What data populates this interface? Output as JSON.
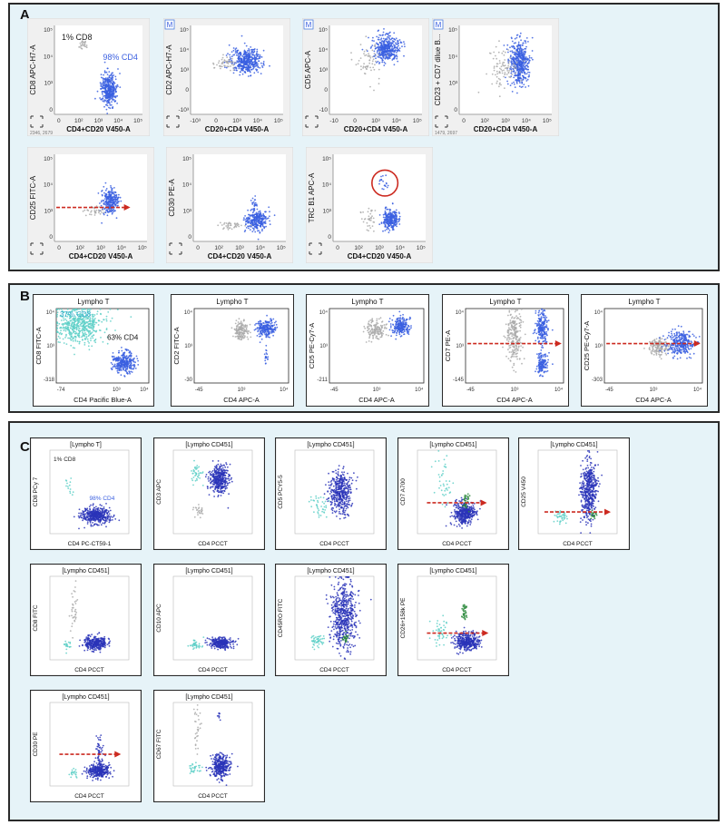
{
  "panels": {
    "a": "A",
    "b": "B",
    "c": "C"
  },
  "colors": {
    "blue": "#3a5fe0",
    "blue_dark": "#2a34b8",
    "gray": "#aaaaaa",
    "cyan": "#5fd0c8",
    "green": "#2e8b3e",
    "red": "#cc2a20",
    "panel_bg": "#e6f3f8"
  },
  "chart_data": [
    {
      "panel": "A",
      "type": "scatter",
      "xlabel": "CD4+CD20 V450-A",
      "ylabel": "CD8 APC-H7-A",
      "xticks": [
        "0",
        "10²",
        "10³",
        "10⁴",
        "10⁵"
      ],
      "yticks": [
        "0",
        "10³",
        "10⁴",
        "10⁵"
      ],
      "annotations": [
        "1% CD8",
        "98% CD4"
      ],
      "footer": "2346, 2679",
      "marker": "",
      "clusters": [
        {
          "c": "blue",
          "x": 0.62,
          "y": 0.72,
          "sx": 0.045,
          "sy": 0.09,
          "n": 380
        },
        {
          "c": "gray",
          "x": 0.32,
          "y": 0.2,
          "sx": 0.03,
          "sy": 0.03,
          "n": 25
        }
      ],
      "arrow": null,
      "circle": null
    },
    {
      "panel": "A",
      "type": "scatter",
      "xlabel": "CD20+CD4 V450-A",
      "ylabel": "CD2 APC-H7-A",
      "xticks": [
        "-10³",
        "0",
        "10³",
        "10⁴",
        "10⁵"
      ],
      "yticks": [
        "-10³",
        "0",
        "10³",
        "10⁴",
        "10⁵"
      ],
      "annotations": [],
      "footer": "",
      "marker": "M",
      "clusters": [
        {
          "c": "blue",
          "x": 0.6,
          "y": 0.4,
          "sx": 0.08,
          "sy": 0.07,
          "n": 420
        },
        {
          "c": "gray",
          "x": 0.38,
          "y": 0.42,
          "sx": 0.06,
          "sy": 0.04,
          "n": 50
        }
      ],
      "arrow": null,
      "circle": null
    },
    {
      "panel": "A",
      "type": "scatter",
      "xlabel": "CD20+CD4 V450-A",
      "ylabel": "CD5 APC-A",
      "xticks": [
        "-10",
        "0",
        "10³",
        "10⁴",
        "10⁵"
      ],
      "yticks": [
        "-10",
        "0",
        "10³",
        "10⁴",
        "10⁵"
      ],
      "annotations": [],
      "footer": "",
      "marker": "M",
      "clusters": [
        {
          "c": "blue",
          "x": 0.62,
          "y": 0.26,
          "sx": 0.07,
          "sy": 0.07,
          "n": 400
        },
        {
          "c": "gray",
          "x": 0.42,
          "y": 0.38,
          "sx": 0.07,
          "sy": 0.12,
          "n": 60
        }
      ],
      "arrow": null,
      "circle": null
    },
    {
      "panel": "A",
      "type": "scatter",
      "xlabel": "CD20+CD4 V450-A",
      "ylabel": "CD23 + CD7 dilue B...",
      "xticks": [
        "0",
        "10²",
        "10³",
        "10⁴",
        "10⁵"
      ],
      "yticks": [
        "0",
        "10³",
        "10⁴",
        "10⁵"
      ],
      "annotations": [],
      "footer": "1479, 2697",
      "marker": "M",
      "clusters": [
        {
          "c": "blue",
          "x": 0.65,
          "y": 0.42,
          "sx": 0.05,
          "sy": 0.13,
          "n": 460
        },
        {
          "c": "gray",
          "x": 0.48,
          "y": 0.5,
          "sx": 0.08,
          "sy": 0.12,
          "n": 90
        }
      ],
      "arrow": null,
      "circle": null
    },
    {
      "panel": "A",
      "type": "scatter",
      "xlabel": "CD4+CD20 V450-A",
      "ylabel": "CD25 FITC-A",
      "xticks": [
        "0",
        "10²",
        "10³",
        "10⁴",
        "10⁵"
      ],
      "yticks": [
        "0",
        "10³",
        "10⁴",
        "10⁵"
      ],
      "annotations": [],
      "footer": "",
      "marker": "",
      "clusters": [
        {
          "c": "blue",
          "x": 0.6,
          "y": 0.54,
          "sx": 0.045,
          "sy": 0.07,
          "n": 260
        },
        {
          "c": "gray",
          "x": 0.43,
          "y": 0.65,
          "sx": 0.06,
          "sy": 0.04,
          "n": 35
        }
      ],
      "arrow": {
        "y": 0.61,
        "x1": 0.02,
        "x2": 0.82
      },
      "circle": null
    },
    {
      "panel": "A",
      "type": "scatter",
      "xlabel": "CD4+CD20 V450-A",
      "ylabel": "CD30 PE-A",
      "xticks": [
        "0",
        "10²",
        "10³",
        "10⁴",
        "10⁵"
      ],
      "yticks": [
        "0",
        "10³",
        "10⁴",
        "10⁵"
      ],
      "annotations": [],
      "footer": "",
      "marker": "",
      "clusters": [
        {
          "c": "blue",
          "x": 0.68,
          "y": 0.76,
          "sx": 0.06,
          "sy": 0.06,
          "n": 280
        },
        {
          "c": "gray",
          "x": 0.42,
          "y": 0.82,
          "sx": 0.08,
          "sy": 0.02,
          "n": 40
        },
        {
          "c": "blue",
          "x": 0.66,
          "y": 0.56,
          "sx": 0.02,
          "sy": 0.06,
          "n": 20
        }
      ],
      "arrow": null,
      "circle": null
    },
    {
      "panel": "A",
      "type": "scatter",
      "xlabel": "CD4+CD20 V450-A",
      "ylabel": "TRC B1 APC-A",
      "xticks": [
        "0",
        "10²",
        "10³",
        "10⁴",
        "10⁵"
      ],
      "yticks": [
        "0",
        "10³",
        "10⁴",
        "10⁵"
      ],
      "annotations": [],
      "footer": "",
      "marker": "",
      "clusters": [
        {
          "c": "blue",
          "x": 0.62,
          "y": 0.75,
          "sx": 0.04,
          "sy": 0.06,
          "n": 260
        },
        {
          "c": "blue",
          "x": 0.56,
          "y": 0.35,
          "sx": 0.03,
          "sy": 0.04,
          "n": 18
        },
        {
          "c": "gray",
          "x": 0.4,
          "y": 0.72,
          "sx": 0.05,
          "sy": 0.06,
          "n": 35
        }
      ],
      "arrow": null,
      "circle": {
        "x": 0.56,
        "y": 0.33,
        "r": 0.14
      }
    },
    {
      "panel": "B",
      "type": "scatter",
      "title": "Lympho T",
      "xlabel": "CD4 Pacific Blue-A",
      "ylabel": "CD8 FITC-A",
      "xticks": [
        "-74",
        "",
        "10³",
        "10⁴"
      ],
      "yticks": [
        "-318",
        "10³",
        "10⁴"
      ],
      "annotations": [
        "37% CD8",
        "63% CD4"
      ],
      "footer": "",
      "marker": "",
      "clusters": [
        {
          "c": "cyan",
          "x": 0.25,
          "y": 0.22,
          "sx": 0.13,
          "sy": 0.12,
          "n": 520
        },
        {
          "c": "blue",
          "x": 0.73,
          "y": 0.72,
          "sx": 0.06,
          "sy": 0.07,
          "n": 300
        }
      ],
      "arrow": null,
      "circle": null
    },
    {
      "panel": "B",
      "type": "scatter",
      "title": "Lympho T",
      "xlabel": "CD4 APC-A",
      "ylabel": "CD2 FITC-A",
      "xticks": [
        "-45",
        "10³",
        "10⁴"
      ],
      "yticks": [
        "-30",
        "10³",
        "10⁴"
      ],
      "annotations": [],
      "footer": "",
      "marker": "",
      "clusters": [
        {
          "c": "gray",
          "x": 0.5,
          "y": 0.3,
          "sx": 0.04,
          "sy": 0.06,
          "n": 150
        },
        {
          "c": "blue",
          "x": 0.76,
          "y": 0.27,
          "sx": 0.05,
          "sy": 0.06,
          "n": 220
        },
        {
          "c": "blue",
          "x": 0.76,
          "y": 0.62,
          "sx": 0.01,
          "sy": 0.08,
          "n": 18
        }
      ],
      "arrow": null,
      "circle": null
    },
    {
      "panel": "B",
      "type": "scatter",
      "title": "Lympho T",
      "xlabel": "CD4 APC-A",
      "ylabel": "CD5 PE-Cy7-A",
      "xticks": [
        "-45",
        "10³",
        "10⁴"
      ],
      "yticks": [
        "-211",
        "10³",
        "10⁴"
      ],
      "annotations": [],
      "footer": "",
      "marker": "",
      "clusters": [
        {
          "c": "gray",
          "x": 0.48,
          "y": 0.28,
          "sx": 0.06,
          "sy": 0.06,
          "n": 150
        },
        {
          "c": "blue",
          "x": 0.76,
          "y": 0.24,
          "sx": 0.05,
          "sy": 0.06,
          "n": 220
        }
      ],
      "arrow": null,
      "circle": null
    },
    {
      "panel": "B",
      "type": "scatter",
      "title": "Lympho T",
      "xlabel": "CD4 APC-A",
      "ylabel": "CD7 PE-A",
      "xticks": [
        "-45",
        "10³",
        "10⁴"
      ],
      "yticks": [
        "-145",
        "10³",
        "10⁴"
      ],
      "annotations": [],
      "footer": "",
      "marker": "",
      "clusters": [
        {
          "c": "gray",
          "x": 0.5,
          "y": 0.36,
          "sx": 0.04,
          "sy": 0.18,
          "n": 240
        },
        {
          "c": "blue",
          "x": 0.78,
          "y": 0.25,
          "sx": 0.03,
          "sy": 0.11,
          "n": 220
        },
        {
          "c": "blue",
          "x": 0.78,
          "y": 0.74,
          "sx": 0.03,
          "sy": 0.07,
          "n": 140
        }
      ],
      "arrow": {
        "y": 0.47,
        "x1": 0.02,
        "x2": 0.98
      },
      "circle": null
    },
    {
      "panel": "B",
      "type": "scatter",
      "title": "Lympho T",
      "xlabel": "CD4 APC-A",
      "ylabel": "CD25 PE-Cy7-A",
      "xticks": [
        "-45",
        "10³",
        "10⁴"
      ],
      "yticks": [
        "-303",
        "10³",
        "10⁴"
      ],
      "annotations": [],
      "footer": "",
      "marker": "",
      "clusters": [
        {
          "c": "gray",
          "x": 0.56,
          "y": 0.52,
          "sx": 0.05,
          "sy": 0.06,
          "n": 150
        },
        {
          "c": "blue",
          "x": 0.78,
          "y": 0.47,
          "sx": 0.07,
          "sy": 0.08,
          "n": 300
        }
      ],
      "arrow": {
        "y": 0.47,
        "x1": 0.02,
        "x2": 0.98
      },
      "circle": null
    },
    {
      "panel": "C",
      "type": "scatter",
      "title": "[Lympho T]",
      "xlabel": "CD4 PC-CT59-1",
      "ylabel": "CD8 PCy 7",
      "xticks": [],
      "yticks": [],
      "annotations": [
        "1% CD8",
        "98% CD4"
      ],
      "footer": "",
      "marker": "",
      "clusters": [
        {
          "c": "blue_dark",
          "x": 0.58,
          "y": 0.78,
          "sx": 0.09,
          "sy": 0.05,
          "n": 420
        },
        {
          "c": "cyan",
          "x": 0.24,
          "y": 0.4,
          "sx": 0.03,
          "sy": 0.08,
          "n": 14
        }
      ],
      "arrow": null,
      "circle": null
    },
    {
      "panel": "C",
      "type": "scatter",
      "title": "[Lympho CD451]",
      "xlabel": "CD4 PCCT",
      "ylabel": "CD3 APC",
      "xticks": [],
      "yticks": [],
      "annotations": [],
      "footer": "",
      "marker": "",
      "clusters": [
        {
          "c": "blue_dark",
          "x": 0.58,
          "y": 0.35,
          "sx": 0.06,
          "sy": 0.08,
          "n": 380
        },
        {
          "c": "cyan",
          "x": 0.3,
          "y": 0.28,
          "sx": 0.04,
          "sy": 0.06,
          "n": 40
        },
        {
          "c": "gray",
          "x": 0.32,
          "y": 0.74,
          "sx": 0.03,
          "sy": 0.04,
          "n": 25
        }
      ],
      "arrow": null,
      "circle": null
    },
    {
      "panel": "C",
      "type": "scatter",
      "title": "[Lympho CD451]",
      "xlabel": "CD4 PCCT",
      "ylabel": "CD5 PCY5-5",
      "xticks": [],
      "yticks": [],
      "annotations": [],
      "footer": "",
      "marker": "",
      "clusters": [
        {
          "c": "blue_dark",
          "x": 0.58,
          "y": 0.5,
          "sx": 0.07,
          "sy": 0.13,
          "n": 420
        },
        {
          "c": "cyan",
          "x": 0.3,
          "y": 0.64,
          "sx": 0.05,
          "sy": 0.08,
          "n": 40
        }
      ],
      "arrow": null,
      "circle": null
    },
    {
      "panel": "C",
      "type": "scatter",
      "title": "[Lympho CD451]",
      "xlabel": "CD4 PCCT",
      "ylabel": "CD7 A700",
      "xticks": [],
      "yticks": [],
      "annotations": [],
      "footer": "",
      "marker": "",
      "clusters": [
        {
          "c": "blue_dark",
          "x": 0.6,
          "y": 0.76,
          "sx": 0.07,
          "sy": 0.07,
          "n": 380
        },
        {
          "c": "cyan",
          "x": 0.32,
          "y": 0.4,
          "sx": 0.05,
          "sy": 0.15,
          "n": 40
        },
        {
          "c": "green",
          "x": 0.62,
          "y": 0.6,
          "sx": 0.02,
          "sy": 0.05,
          "n": 30
        }
      ],
      "arrow": {
        "y": 0.63,
        "x1": 0.12,
        "x2": 0.88
      },
      "circle": null
    },
    {
      "panel": "C",
      "type": "scatter",
      "title": "[Lympho CD451]",
      "xlabel": "CD4 PCCT",
      "ylabel": "CD25 V450",
      "xticks": [],
      "yticks": [],
      "annotations": [],
      "footer": "",
      "marker": "",
      "clusters": [
        {
          "c": "blue_dark",
          "x": 0.64,
          "y": 0.48,
          "sx": 0.05,
          "sy": 0.18,
          "n": 460
        },
        {
          "c": "cyan",
          "x": 0.3,
          "y": 0.8,
          "sx": 0.05,
          "sy": 0.04,
          "n": 40
        },
        {
          "c": "green",
          "x": 0.7,
          "y": 0.78,
          "sx": 0.02,
          "sy": 0.03,
          "n": 20
        }
      ],
      "arrow": {
        "y": 0.74,
        "x1": 0.08,
        "x2": 0.92
      },
      "circle": null
    },
    {
      "panel": "C",
      "type": "scatter",
      "title": "[Lympho CD451]",
      "xlabel": "CD4 PCCT",
      "ylabel": "CD8 FITC",
      "xticks": [],
      "yticks": [],
      "annotations": [],
      "footer": "",
      "marker": "",
      "clusters": [
        {
          "c": "blue_dark",
          "x": 0.58,
          "y": 0.8,
          "sx": 0.07,
          "sy": 0.04,
          "n": 320
        },
        {
          "c": "cyan",
          "x": 0.22,
          "y": 0.82,
          "sx": 0.03,
          "sy": 0.03,
          "n": 20
        },
        {
          "c": "gray",
          "x": 0.3,
          "y": 0.35,
          "sx": 0.03,
          "sy": 0.15,
          "n": 35
        }
      ],
      "arrow": null,
      "circle": null
    },
    {
      "panel": "C",
      "type": "scatter",
      "title": "[Lympho CD451]",
      "xlabel": "CD4 PCCT",
      "ylabel": "CD10 APC",
      "xticks": [],
      "yticks": [],
      "annotations": [],
      "footer": "",
      "marker": "",
      "clusters": [
        {
          "c": "blue_dark",
          "x": 0.6,
          "y": 0.8,
          "sx": 0.07,
          "sy": 0.03,
          "n": 300
        },
        {
          "c": "cyan",
          "x": 0.28,
          "y": 0.82,
          "sx": 0.04,
          "sy": 0.03,
          "n": 40
        }
      ],
      "arrow": null,
      "circle": null
    },
    {
      "panel": "C",
      "type": "scatter",
      "title": "[Lympho CD451]",
      "xlabel": "CD4 PCCT",
      "ylabel": "CD45RO FITC",
      "xticks": [],
      "yticks": [],
      "annotations": [],
      "footer": "",
      "marker": "",
      "clusters": [
        {
          "c": "blue_dark",
          "x": 0.62,
          "y": 0.46,
          "sx": 0.08,
          "sy": 0.2,
          "n": 560
        },
        {
          "c": "cyan",
          "x": 0.28,
          "y": 0.78,
          "sx": 0.04,
          "sy": 0.04,
          "n": 50
        },
        {
          "c": "green",
          "x": 0.64,
          "y": 0.75,
          "sx": 0.02,
          "sy": 0.03,
          "n": 25
        }
      ],
      "arrow": null,
      "circle": null
    },
    {
      "panel": "C",
      "type": "scatter",
      "title": "[Lympho CD451]",
      "xlabel": "CD4 PCCT",
      "ylabel": "CD26+158k PE",
      "xticks": [],
      "yticks": [],
      "annotations": [],
      "footer": "",
      "marker": "",
      "clusters": [
        {
          "c": "blue_dark",
          "x": 0.62,
          "y": 0.78,
          "sx": 0.08,
          "sy": 0.05,
          "n": 380
        },
        {
          "c": "cyan",
          "x": 0.3,
          "y": 0.68,
          "sx": 0.06,
          "sy": 0.08,
          "n": 45
        },
        {
          "c": "green",
          "x": 0.6,
          "y": 0.42,
          "sx": 0.02,
          "sy": 0.07,
          "n": 40
        }
      ],
      "arrow": {
        "y": 0.68,
        "x1": 0.12,
        "x2": 0.9
      },
      "circle": null
    },
    {
      "panel": "C",
      "type": "scatter",
      "title": "[Lympho CD451]",
      "xlabel": "CD4 PCCT",
      "ylabel": "CD30 PE",
      "xticks": [],
      "yticks": [],
      "annotations": [],
      "footer": "",
      "marker": "",
      "clusters": [
        {
          "c": "blue_dark",
          "x": 0.62,
          "y": 0.82,
          "sx": 0.07,
          "sy": 0.04,
          "n": 320
        },
        {
          "c": "cyan",
          "x": 0.3,
          "y": 0.84,
          "sx": 0.03,
          "sy": 0.03,
          "n": 20
        },
        {
          "c": "blue_dark",
          "x": 0.63,
          "y": 0.6,
          "sx": 0.02,
          "sy": 0.1,
          "n": 60
        }
      ],
      "arrow": {
        "y": 0.62,
        "x1": 0.12,
        "x2": 0.9
      },
      "circle": null
    },
    {
      "panel": "C",
      "type": "scatter",
      "title": "[Lympho CD451]",
      "xlabel": "CD4 PCCT",
      "ylabel": "CD67 FITC",
      "xticks": [],
      "yticks": [],
      "annotations": [],
      "footer": "",
      "marker": "",
      "clusters": [
        {
          "c": "blue_dark",
          "x": 0.6,
          "y": 0.76,
          "sx": 0.06,
          "sy": 0.07,
          "n": 340
        },
        {
          "c": "cyan",
          "x": 0.28,
          "y": 0.8,
          "sx": 0.04,
          "sy": 0.04,
          "n": 30
        },
        {
          "c": "gray",
          "x": 0.3,
          "y": 0.3,
          "sx": 0.03,
          "sy": 0.15,
          "n": 30
        },
        {
          "c": "blue_dark",
          "x": 0.58,
          "y": 0.16,
          "sx": 0.01,
          "sy": 0.03,
          "n": 8
        }
      ],
      "arrow": null,
      "circle": null
    }
  ]
}
